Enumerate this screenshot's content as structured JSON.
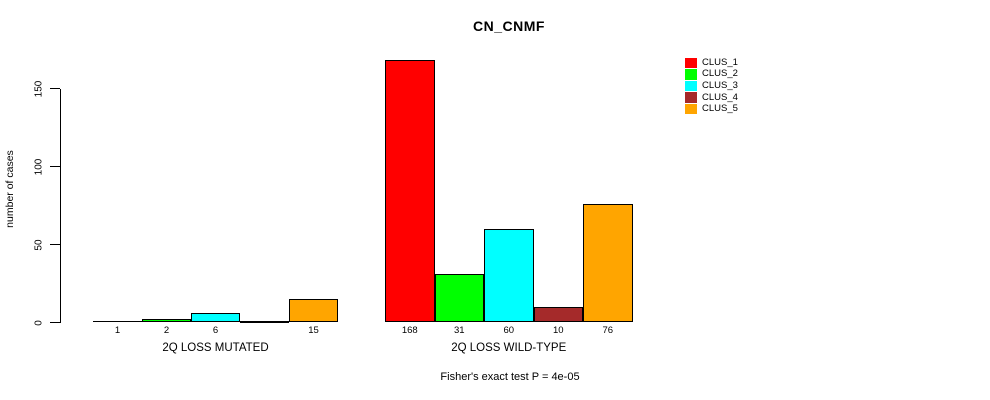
{
  "chart_data": {
    "type": "bar",
    "title": "CN_CNMF",
    "ylabel": "number of cases",
    "xlabel": "",
    "yticks": [
      0,
      50,
      100,
      150
    ],
    "ylim": [
      0,
      170
    ],
    "grid": false,
    "legend_position": "right",
    "categories": [
      "2Q LOSS MUTATED",
      "2Q LOSS WILD-TYPE"
    ],
    "groups": [
      {
        "label": "2Q LOSS MUTATED",
        "values": [
          1,
          2,
          6,
          0,
          15
        ],
        "value_labels": [
          "1",
          "2",
          "6",
          "",
          "15"
        ]
      },
      {
        "label": "2Q LOSS WILD-TYPE",
        "values": [
          168,
          31,
          60,
          10,
          76
        ],
        "value_labels": [
          "168",
          "31",
          "60",
          "10",
          "76"
        ]
      }
    ],
    "series": [
      {
        "name": "CLUS_1",
        "color": "#FF0000",
        "values": [
          1,
          168
        ]
      },
      {
        "name": "CLUS_2",
        "color": "#00FF00",
        "values": [
          2,
          31
        ]
      },
      {
        "name": "CLUS_3",
        "color": "#00FFFF",
        "values": [
          6,
          60
        ]
      },
      {
        "name": "CLUS_4",
        "color": "#A52A2A",
        "values": [
          0,
          10
        ]
      },
      {
        "name": "CLUS_5",
        "color": "#FFA500",
        "values": [
          15,
          76
        ]
      }
    ],
    "legend": [
      {
        "label": "CLUS_1",
        "color": "#FF0000"
      },
      {
        "label": "CLUS_2",
        "color": "#00FF00"
      },
      {
        "label": "CLUS_3",
        "color": "#00FFFF"
      },
      {
        "label": "CLUS_4",
        "color": "#A52A2A"
      },
      {
        "label": "CLUS_5",
        "color": "#FFA500"
      }
    ],
    "annotation": "Fisher's exact test P = 4e-05",
    "colors": {
      "axis": "#000000",
      "text": "#000000",
      "background": "#FFFFFF"
    }
  }
}
